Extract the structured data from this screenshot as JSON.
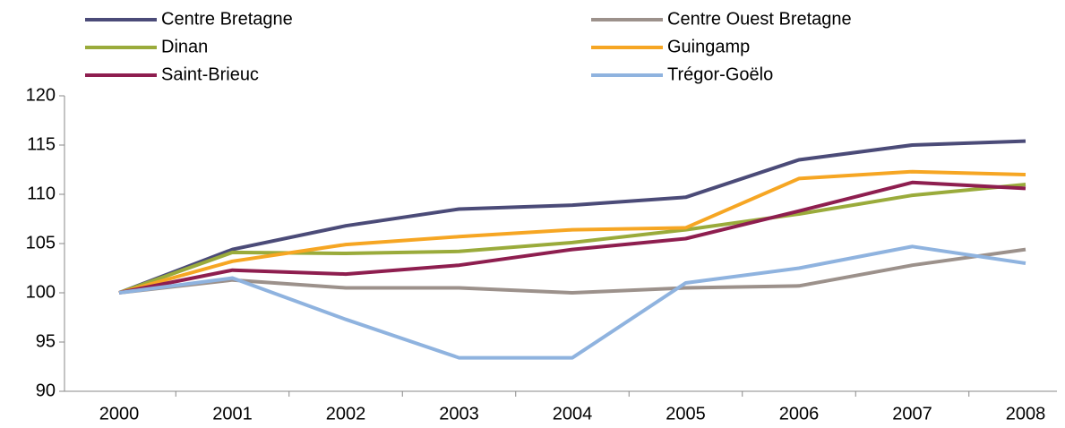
{
  "chart_data": {
    "type": "line",
    "categories": [
      "2000",
      "2001",
      "2002",
      "2003",
      "2004",
      "2005",
      "2006",
      "2007",
      "2008"
    ],
    "series": [
      {
        "name": "Centre Bretagne",
        "color": "#4b4b78",
        "values": [
          100,
          104.4,
          106.8,
          108.5,
          108.9,
          109.7,
          113.5,
          115,
          115.4
        ]
      },
      {
        "name": "Centre Ouest Bretagne",
        "color": "#9c918b",
        "values": [
          100,
          101.3,
          100.5,
          100.5,
          100,
          100.5,
          100.7,
          102.8,
          104.4
        ]
      },
      {
        "name": "Dinan",
        "color": "#9aab3b",
        "values": [
          100,
          104.1,
          104,
          104.2,
          105.1,
          106.4,
          108,
          109.9,
          111
        ]
      },
      {
        "name": "Guingamp",
        "color": "#f6a623",
        "values": [
          100,
          103.2,
          104.9,
          105.7,
          106.4,
          106.6,
          111.6,
          112.3,
          112
        ]
      },
      {
        "name": "Saint-Brieuc",
        "color": "#8e1e4f",
        "values": [
          100,
          102.3,
          101.9,
          102.8,
          104.4,
          105.5,
          108.3,
          111.2,
          110.6
        ]
      },
      {
        "name": "Trégor-Goëlo",
        "color": "#8fb3df",
        "values": [
          100,
          101.5,
          97.3,
          93.4,
          93.4,
          101,
          102.5,
          104.7,
          103
        ]
      }
    ],
    "ylim": [
      90,
      120
    ],
    "yticks": [
      90,
      95,
      100,
      105,
      110,
      115,
      120
    ],
    "grid": false
  }
}
